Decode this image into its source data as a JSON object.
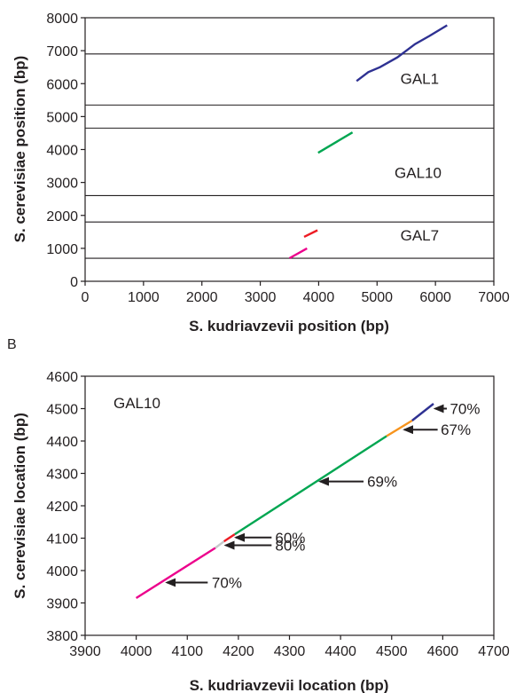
{
  "chart_data": [
    {
      "type": "line",
      "panel_label": "",
      "xlabel": "S. kudriavzevii position (bp)",
      "ylabel": "S. cerevisiae position (bp)",
      "xlim": [
        0,
        7000
      ],
      "ylim": [
        0,
        8000
      ],
      "x_ticks": [
        0,
        1000,
        2000,
        3000,
        4000,
        5000,
        6000,
        7000
      ],
      "y_ticks": [
        0,
        1000,
        2000,
        3000,
        4000,
        5000,
        6000,
        7000,
        8000
      ],
      "boundary_lines": [
        6900,
        5350,
        4650,
        2600,
        1800,
        700
      ],
      "region_labels": [
        {
          "text": "GAL1",
          "x": 5400,
          "y": 6150
        },
        {
          "text": "GAL10",
          "x": 5300,
          "y": 3300
        },
        {
          "text": "GAL7",
          "x": 5400,
          "y": 1400
        }
      ],
      "series": [
        {
          "color": "#2e3192",
          "points": [
            [
              4650,
              6080
            ],
            [
              4850,
              6350
            ],
            [
              5050,
              6500
            ],
            [
              5350,
              6800
            ],
            [
              5650,
              7200
            ],
            [
              5900,
              7450
            ],
            [
              6200,
              7770
            ]
          ]
        },
        {
          "color": "#00a651",
          "points": [
            [
              3990,
              3900
            ],
            [
              4580,
              4520
            ]
          ]
        },
        {
          "color": "#ed1c24",
          "points": [
            [
              3750,
              1350
            ],
            [
              3980,
              1550
            ]
          ]
        },
        {
          "color": "#ec008c",
          "points": [
            [
              3500,
              700
            ],
            [
              3800,
              1000
            ]
          ]
        }
      ]
    },
    {
      "type": "line",
      "panel_label": "B",
      "title": "GAL10",
      "xlabel": "S. kudriavzevii location (bp)",
      "ylabel": "S. cerevisiae location (bp)",
      "xlim": [
        3900,
        4700
      ],
      "ylim": [
        3800,
        4600
      ],
      "x_ticks": [
        3900,
        4000,
        4100,
        4200,
        4300,
        4400,
        4500,
        4600,
        4700
      ],
      "y_ticks": [
        3800,
        3900,
        4000,
        4100,
        4200,
        4300,
        4400,
        4500,
        4600
      ],
      "series": [
        {
          "color": "#ec008c",
          "points": [
            [
              4000,
              3915
            ],
            [
              4155,
              4070
            ]
          ]
        },
        {
          "color": "#c7c8ca",
          "points": [
            [
              4155,
              4070
            ],
            [
              4172,
              4090
            ]
          ]
        },
        {
          "color": "#ed1c24",
          "points": [
            [
              4172,
              4090
            ],
            [
              4193,
              4112
            ]
          ]
        },
        {
          "color": "#00a651",
          "points": [
            [
              4193,
              4112
            ],
            [
              4490,
              4415
            ]
          ]
        },
        {
          "color": "#f7941d",
          "points": [
            [
              4490,
              4415
            ],
            [
              4540,
              4463
            ]
          ]
        },
        {
          "color": "#2e3192",
          "points": [
            [
              4540,
              4463
            ],
            [
              4582,
              4515
            ]
          ]
        }
      ],
      "annotations": [
        {
          "text": "70%",
          "arrow_from": [
            4608,
            4500
          ],
          "arrow_to": [
            4585,
            4500
          ],
          "label_at": [
            4614,
            4500
          ]
        },
        {
          "text": "67%",
          "arrow_from": [
            4590,
            4435
          ],
          "arrow_to": [
            4525,
            4435
          ],
          "label_at": [
            4596,
            4435
          ]
        },
        {
          "text": "69%",
          "arrow_from": [
            4445,
            4275
          ],
          "arrow_to": [
            4360,
            4275
          ],
          "label_at": [
            4452,
            4275
          ]
        },
        {
          "text": "60%",
          "arrow_from": [
            4265,
            4102
          ],
          "arrow_to": [
            4195,
            4102
          ],
          "label_at": [
            4272,
            4102
          ]
        },
        {
          "text": "80%",
          "arrow_from": [
            4265,
            4078
          ],
          "arrow_to": [
            4175,
            4078
          ],
          "label_at": [
            4272,
            4078
          ]
        },
        {
          "text": "70%",
          "arrow_from": [
            4140,
            3963
          ],
          "arrow_to": [
            4060,
            3963
          ],
          "label_at": [
            4148,
            3963
          ]
        }
      ]
    }
  ]
}
